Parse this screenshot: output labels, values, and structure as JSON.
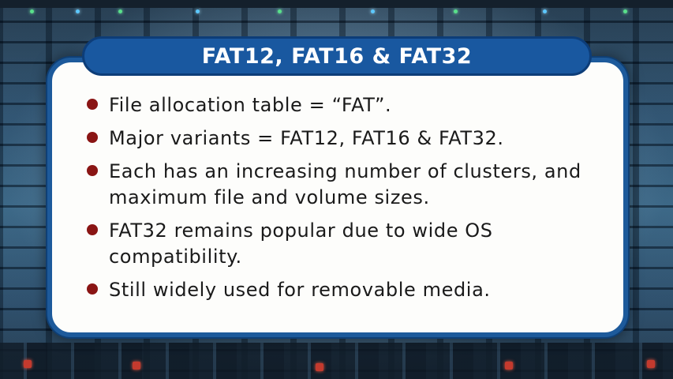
{
  "slide": {
    "title": "FAT12, FAT16 & FAT32",
    "bullets": [
      "File allocation table = “FAT”.",
      "Major variants = FAT12, FAT16 & FAT32.",
      "Each has an increasing number of clusters, and maximum file and volume sizes.",
      "FAT32 remains popular due to wide OS compatibility.",
      "Still widely used for removable media."
    ]
  },
  "colors": {
    "title_bar": "#1958a0",
    "card_border": "#1d5a9b",
    "bullet_dot": "#8a1514",
    "card_background": "#fdfdfb"
  }
}
